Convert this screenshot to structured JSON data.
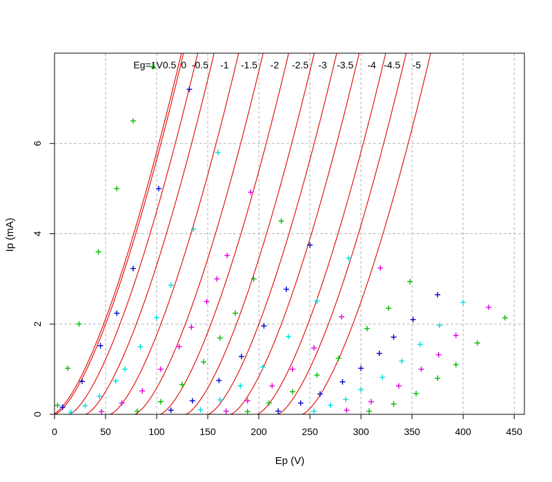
{
  "chart_data": {
    "type": "line",
    "title": "",
    "xlabel": "Ep (V)",
    "ylabel": "Ip (mA)",
    "xlim": [
      0,
      460
    ],
    "ylim": [
      0,
      8
    ],
    "xticks": [
      0,
      50,
      100,
      150,
      200,
      250,
      300,
      350,
      400,
      450
    ],
    "yticks": [
      0,
      2,
      4,
      6
    ],
    "grid": true,
    "curve_color": "#e00000",
    "point_colors": [
      "#00bb00",
      "#0000cc",
      "#00dddd",
      "#dd00dd"
    ],
    "curves": [
      {
        "label": "Eg=1V",
        "eg": 1,
        "offset": -2
      },
      {
        "label": "0.5",
        "eg": 0.5,
        "offset": 0
      },
      {
        "label": "0",
        "eg": 0,
        "offset": 14
      },
      {
        "label": "-0.5",
        "eg": -0.5,
        "offset": 30
      },
      {
        "label": "-1",
        "eg": -1,
        "offset": 54
      },
      {
        "label": "-1.5",
        "eg": -1.5,
        "offset": 78
      },
      {
        "label": "-2",
        "eg": -2,
        "offset": 103
      },
      {
        "label": "-2.5",
        "eg": -2.5,
        "offset": 128
      },
      {
        "label": "-3",
        "eg": -3,
        "offset": 150
      },
      {
        "label": "-3.5",
        "eg": -3.5,
        "offset": 172
      },
      {
        "label": "-4",
        "eg": -4,
        "offset": 198
      },
      {
        "label": "-4.5",
        "eg": -4.5,
        "offset": 218
      },
      {
        "label": "-5",
        "eg": -5,
        "offset": 242
      }
    ],
    "points": [
      {
        "x": 3,
        "y": 0.2,
        "c": 0
      },
      {
        "x": 13,
        "y": 1.02,
        "c": 0
      },
      {
        "x": 24,
        "y": 2.0,
        "c": 0
      },
      {
        "x": 43,
        "y": 3.6,
        "c": 0
      },
      {
        "x": 61,
        "y": 5.0,
        "c": 0
      },
      {
        "x": 77,
        "y": 6.5,
        "c": 0
      },
      {
        "x": 96,
        "y": 7.7,
        "c": 0
      },
      {
        "x": 8,
        "y": 0.16,
        "c": 1
      },
      {
        "x": 27,
        "y": 0.73,
        "c": 1
      },
      {
        "x": 45,
        "y": 1.52,
        "c": 1
      },
      {
        "x": 61,
        "y": 2.24,
        "c": 1
      },
      {
        "x": 77,
        "y": 3.23,
        "c": 1
      },
      {
        "x": 102,
        "y": 5.0,
        "c": 1
      },
      {
        "x": 132,
        "y": 7.2,
        "c": 1
      },
      {
        "x": 16,
        "y": 0.05,
        "c": 2
      },
      {
        "x": 30,
        "y": 0.19,
        "c": 2
      },
      {
        "x": 44,
        "y": 0.4,
        "c": 2
      },
      {
        "x": 60,
        "y": 0.74,
        "c": 2
      },
      {
        "x": 69,
        "y": 1.0,
        "c": 2
      },
      {
        "x": 84,
        "y": 1.5,
        "c": 2
      },
      {
        "x": 100,
        "y": 2.14,
        "c": 2
      },
      {
        "x": 114,
        "y": 2.86,
        "c": 2
      },
      {
        "x": 136,
        "y": 4.1,
        "c": 2
      },
      {
        "x": 160,
        "y": 5.8,
        "c": 2
      },
      {
        "x": 46,
        "y": 0.06,
        "c": 3
      },
      {
        "x": 66,
        "y": 0.25,
        "c": 3
      },
      {
        "x": 86,
        "y": 0.52,
        "c": 3
      },
      {
        "x": 104,
        "y": 1.0,
        "c": 3
      },
      {
        "x": 122,
        "y": 1.5,
        "c": 3
      },
      {
        "x": 134,
        "y": 1.93,
        "c": 3
      },
      {
        "x": 149,
        "y": 2.5,
        "c": 3
      },
      {
        "x": 159,
        "y": 3.0,
        "c": 3
      },
      {
        "x": 169,
        "y": 3.52,
        "c": 3
      },
      {
        "x": 192,
        "y": 4.92,
        "c": 3
      },
      {
        "x": 81,
        "y": 0.07,
        "c": 0
      },
      {
        "x": 104,
        "y": 0.28,
        "c": 0
      },
      {
        "x": 125,
        "y": 0.66,
        "c": 0
      },
      {
        "x": 146,
        "y": 1.16,
        "c": 0
      },
      {
        "x": 162,
        "y": 1.69,
        "c": 0
      },
      {
        "x": 177,
        "y": 2.24,
        "c": 0
      },
      {
        "x": 195,
        "y": 3.0,
        "c": 0
      },
      {
        "x": 222,
        "y": 4.28,
        "c": 0
      },
      {
        "x": 114,
        "y": 0.09,
        "c": 1
      },
      {
        "x": 135,
        "y": 0.3,
        "c": 1
      },
      {
        "x": 161,
        "y": 0.75,
        "c": 1
      },
      {
        "x": 183,
        "y": 1.28,
        "c": 1
      },
      {
        "x": 205,
        "y": 1.96,
        "c": 1
      },
      {
        "x": 227,
        "y": 2.77,
        "c": 1
      },
      {
        "x": 250,
        "y": 3.75,
        "c": 1
      },
      {
        "x": 143,
        "y": 0.1,
        "c": 2
      },
      {
        "x": 162,
        "y": 0.32,
        "c": 2
      },
      {
        "x": 182,
        "y": 0.63,
        "c": 2
      },
      {
        "x": 204,
        "y": 1.05,
        "c": 2
      },
      {
        "x": 229,
        "y": 1.72,
        "c": 2
      },
      {
        "x": 257,
        "y": 2.51,
        "c": 2
      },
      {
        "x": 288,
        "y": 3.46,
        "c": 2
      },
      {
        "x": 168,
        "y": 0.07,
        "c": 3
      },
      {
        "x": 189,
        "y": 0.3,
        "c": 3
      },
      {
        "x": 213,
        "y": 0.63,
        "c": 3
      },
      {
        "x": 233,
        "y": 1.0,
        "c": 3
      },
      {
        "x": 254,
        "y": 1.47,
        "c": 3
      },
      {
        "x": 281,
        "y": 2.16,
        "c": 3
      },
      {
        "x": 319,
        "y": 3.24,
        "c": 3
      },
      {
        "x": 189,
        "y": 0.06,
        "c": 0
      },
      {
        "x": 210,
        "y": 0.25,
        "c": 0
      },
      {
        "x": 233,
        "y": 0.5,
        "c": 0
      },
      {
        "x": 257,
        "y": 0.87,
        "c": 0
      },
      {
        "x": 278,
        "y": 1.24,
        "c": 0
      },
      {
        "x": 306,
        "y": 1.9,
        "c": 0
      },
      {
        "x": 327,
        "y": 2.35,
        "c": 0
      },
      {
        "x": 348,
        "y": 2.94,
        "c": 0
      },
      {
        "x": 219,
        "y": 0.07,
        "c": 1
      },
      {
        "x": 241,
        "y": 0.25,
        "c": 1
      },
      {
        "x": 260,
        "y": 0.45,
        "c": 1
      },
      {
        "x": 282,
        "y": 0.72,
        "c": 1
      },
      {
        "x": 300,
        "y": 1.02,
        "c": 1
      },
      {
        "x": 318,
        "y": 1.35,
        "c": 1
      },
      {
        "x": 332,
        "y": 1.71,
        "c": 1
      },
      {
        "x": 351,
        "y": 2.1,
        "c": 1
      },
      {
        "x": 375,
        "y": 2.65,
        "c": 1
      },
      {
        "x": 254,
        "y": 0.07,
        "c": 2
      },
      {
        "x": 270,
        "y": 0.2,
        "c": 2
      },
      {
        "x": 285,
        "y": 0.33,
        "c": 2
      },
      {
        "x": 300,
        "y": 0.55,
        "c": 2
      },
      {
        "x": 321,
        "y": 0.82,
        "c": 2
      },
      {
        "x": 340,
        "y": 1.18,
        "c": 2
      },
      {
        "x": 358,
        "y": 1.55,
        "c": 2
      },
      {
        "x": 377,
        "y": 1.97,
        "c": 2
      },
      {
        "x": 400,
        "y": 2.48,
        "c": 2
      },
      {
        "x": 286,
        "y": 0.09,
        "c": 3
      },
      {
        "x": 310,
        "y": 0.28,
        "c": 3
      },
      {
        "x": 337,
        "y": 0.63,
        "c": 3
      },
      {
        "x": 359,
        "y": 1.0,
        "c": 3
      },
      {
        "x": 376,
        "y": 1.32,
        "c": 3
      },
      {
        "x": 393,
        "y": 1.75,
        "c": 3
      },
      {
        "x": 425,
        "y": 2.37,
        "c": 3
      },
      {
        "x": 308,
        "y": 0.07,
        "c": 0
      },
      {
        "x": 332,
        "y": 0.23,
        "c": 0
      },
      {
        "x": 354,
        "y": 0.46,
        "c": 0
      },
      {
        "x": 375,
        "y": 0.8,
        "c": 0
      },
      {
        "x": 393,
        "y": 1.1,
        "c": 0
      },
      {
        "x": 414,
        "y": 1.58,
        "c": 0
      },
      {
        "x": 441,
        "y": 2.14,
        "c": 0
      }
    ]
  }
}
